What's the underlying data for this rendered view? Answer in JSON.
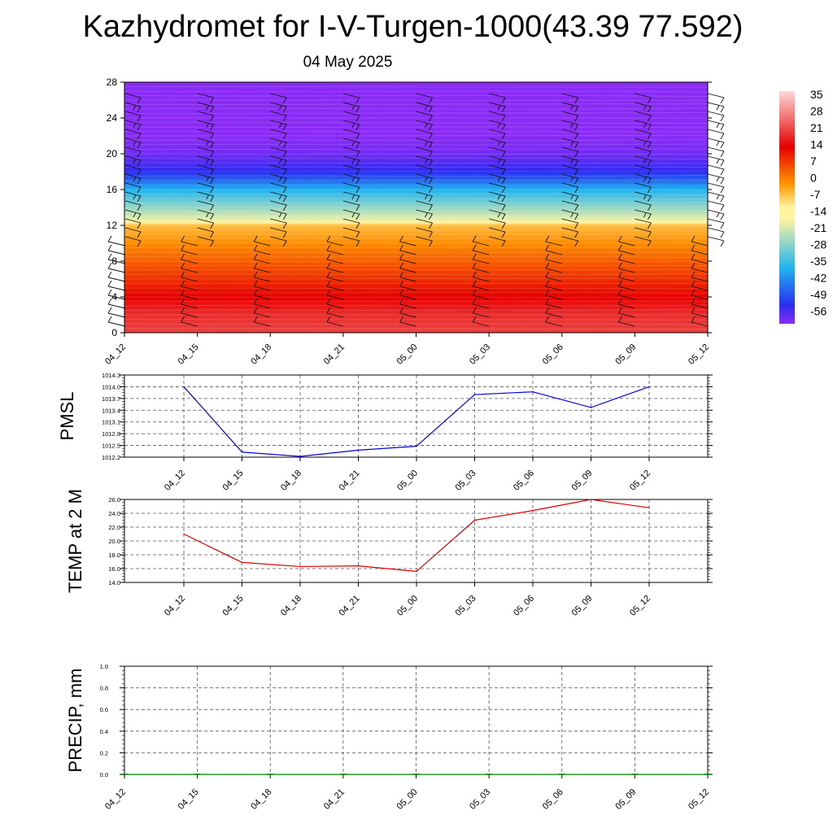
{
  "title": "Kazhydromet for I-V-Turgen-1000(43.39 77.592)",
  "subtitle": "04 May 2025",
  "time_labels": [
    "04_12",
    "04_15",
    "04_18",
    "04_21",
    "05_00",
    "05_03",
    "05_06",
    "05_09",
    "05_12"
  ],
  "chart_data": [
    {
      "type": "heatmap",
      "description_id": "vertical-profile",
      "x_tick_labels": [
        "04_12",
        "04_15",
        "04_18",
        "04_21",
        "05_00",
        "05_03",
        "05_06",
        "05_09",
        "05_12"
      ],
      "y_tick_labels": [
        "0",
        "4",
        "8",
        "12",
        "16",
        "20",
        "24",
        "28"
      ],
      "ylim": [
        0,
        28
      ],
      "colorbar_labels": [
        "35",
        "28",
        "21",
        "14",
        "7",
        "0",
        "-7",
        "-14",
        "-21",
        "-28",
        "-35",
        "-42",
        "-49",
        "-56"
      ],
      "colorbar_range": [
        -60,
        40
      ],
      "temperature_profile": {
        "y": [
          0,
          2,
          4,
          6,
          8,
          10,
          12,
          12.3,
          14,
          16,
          17,
          18,
          19,
          20,
          22,
          24,
          26,
          28
        ],
        "values": [
          23,
          21,
          16,
          11,
          6,
          1,
          -4,
          -15,
          -25,
          -36,
          -45,
          -52,
          -55,
          -58,
          -60,
          -60,
          -60,
          -60
        ]
      },
      "colors": {
        "purple": "#8a2cf6",
        "blue": "#2c2cf0",
        "cyan": "#1eb4f0",
        "pale_yellow": "#fff5a0",
        "orange": "#ff9600",
        "red": "#e60000",
        "barbs": "#111111"
      }
    },
    {
      "type": "line",
      "description_id": "pmsl",
      "ylabel": "PMSL",
      "x": [
        "04_12",
        "04_15",
        "04_18",
        "04_21",
        "05_00",
        "05_03",
        "05_06",
        "05_09",
        "05_12"
      ],
      "series": [
        {
          "values": [
            1014.0,
            1012.33,
            1012.22,
            1012.38,
            1012.48,
            1013.8,
            1013.87,
            1013.47,
            1014.0
          ],
          "color": "#0000dd"
        }
      ],
      "y_tick_labels": [
        "1012.2",
        "1012.5",
        "1012.8",
        "1013.1",
        "1013.4",
        "1013.7",
        "1014.0",
        "1014.3"
      ],
      "ylim": [
        1012.2,
        1014.3
      ]
    },
    {
      "type": "line",
      "description_id": "temp2m",
      "ylabel": "TEMP at 2 M",
      "x": [
        "04_12",
        "04_15",
        "04_18",
        "04_21",
        "05_00",
        "05_03",
        "05_06",
        "05_09",
        "05_12"
      ],
      "series": [
        {
          "values": [
            21.0,
            16.9,
            16.3,
            16.4,
            15.6,
            23.0,
            24.4,
            26.0,
            24.8
          ],
          "color": "#dd0000"
        }
      ],
      "y_tick_labels": [
        "14.0",
        "16.0",
        "18.0",
        "20.0",
        "22.0",
        "24.0",
        "26.0"
      ],
      "ylim": [
        14.0,
        26.0
      ]
    },
    {
      "type": "bar",
      "description_id": "precip",
      "ylabel": "PRECIP, mm",
      "x_tick_labels": [
        "04_12",
        "04_15",
        "04_18",
        "04_21",
        "05_00",
        "05_03",
        "05_06",
        "05_09",
        "05_12"
      ],
      "values": [
        0,
        0,
        0,
        0,
        0,
        0,
        0,
        0,
        0
      ],
      "y_tick_labels": [
        "0.0",
        "0.2",
        "0.4",
        "0.6",
        "0.8",
        "1.0"
      ],
      "ylim": [
        0,
        1.0
      ],
      "color": "#008800"
    }
  ]
}
